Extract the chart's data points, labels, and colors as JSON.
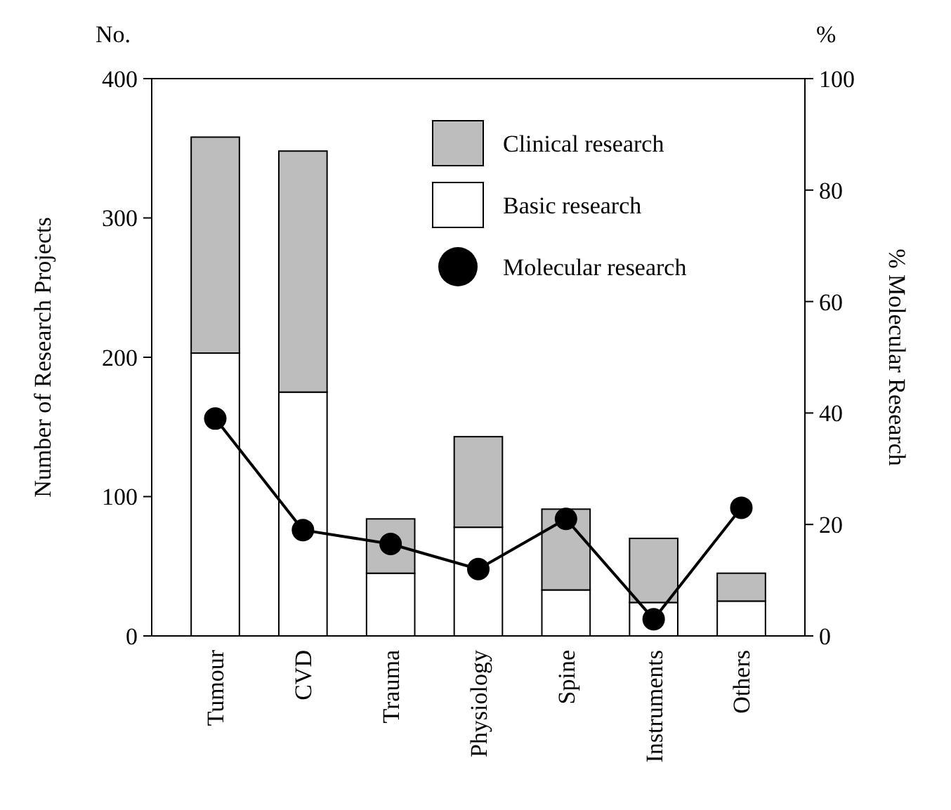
{
  "chart_data": {
    "type": "bar",
    "stacked": true,
    "categories": [
      "Tumour",
      "CVD",
      "Trauma",
      "Physiology",
      "Spine",
      "Instruments",
      "Others"
    ],
    "series": [
      {
        "name": "Basic research",
        "color": "#ffffff",
        "values": [
          203,
          175,
          45,
          78,
          33,
          24,
          25
        ]
      },
      {
        "name": "Clinical research",
        "color": "#bdbdbd",
        "values": [
          155,
          173,
          39,
          65,
          58,
          46,
          20
        ]
      },
      {
        "name": "Molecular research",
        "type": "line",
        "axis": "y2",
        "color": "#000000",
        "values": [
          39,
          19,
          16.5,
          12,
          21,
          3,
          23
        ]
      }
    ],
    "ylim": [
      0,
      400
    ],
    "yticks": [
      0,
      100,
      200,
      300,
      400
    ],
    "y2lim": [
      0,
      100
    ],
    "y2ticks": [
      0,
      20,
      40,
      60,
      80,
      100
    ],
    "ylabel": "Number of Research Projects",
    "y2label": "% Molecular Research",
    "annotations": [
      "No.",
      "%"
    ],
    "legend": "top right",
    "marker": "circle",
    "line_style": "solid",
    "grid": false
  }
}
